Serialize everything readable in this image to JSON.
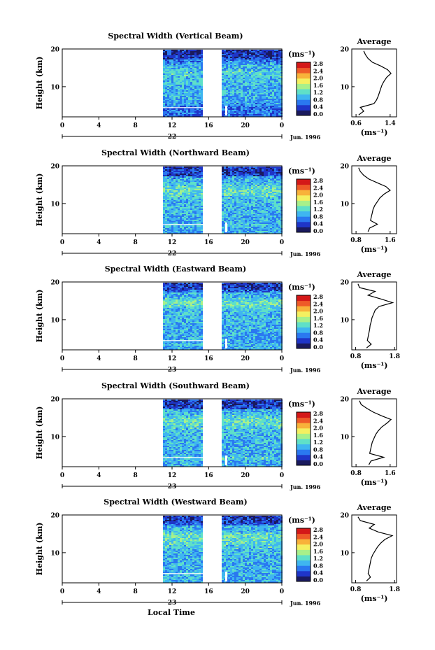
{
  "figure": {
    "xlabel": "Local Time",
    "month_label": "Jun. 1996",
    "day_labels": [
      "22",
      "22",
      "23",
      "23",
      "23"
    ]
  },
  "colorbar": {
    "label": "(ms⁻¹)",
    "ticks": [
      "2.8",
      "2.4",
      "2.0",
      "1.6",
      "1.2",
      "0.8",
      "0.4",
      "0.0"
    ],
    "colors": [
      "#1a1a5e",
      "#1f35c8",
      "#2a78f0",
      "#3fb6f0",
      "#5fe0c8",
      "#a8f08a",
      "#f4f060",
      "#f8b23a",
      "#ee5a28",
      "#d41818"
    ]
  },
  "chart_data": [
    {
      "type": "heatmap",
      "title": "Spectral Width (Vertical Beam)",
      "ylabel": "Height (km)",
      "xticks": [
        "0",
        "4",
        "8",
        "12",
        "16",
        "20",
        "0"
      ],
      "yticks": [
        "20",
        "10"
      ],
      "ylim": [
        2,
        20
      ],
      "data_gap_hours": [
        16.8,
        17.9
      ],
      "data_start_hour": 11.3,
      "profile": {
        "title": "Average",
        "xticks": [
          "0.6",
          "1.4"
        ],
        "yticks": [
          "20",
          "10"
        ],
        "xlabel": "(ms⁻¹)",
        "xlim": [
          0.5,
          1.55
        ],
        "height_km": [
          2.5,
          3.5,
          4.5,
          5.5,
          6.5,
          7.5,
          8.5,
          9.5,
          10.5,
          11.5,
          12.5,
          13.5,
          14.5,
          15.5,
          16.5,
          17.5,
          18.5,
          19.5
        ],
        "width_ms": [
          0.66,
          0.78,
          0.7,
          1.02,
          1.08,
          1.12,
          1.15,
          1.18,
          1.21,
          1.26,
          1.32,
          1.42,
          1.34,
          1.18,
          0.98,
          0.88,
          0.82,
          0.78
        ]
      }
    },
    {
      "type": "heatmap",
      "title": "Spectral Width (Northward Beam)",
      "ylabel": "Height (km)",
      "xticks": [
        "0",
        "4",
        "8",
        "12",
        "16",
        "20",
        "0"
      ],
      "yticks": [
        "20",
        "10"
      ],
      "ylim": [
        2,
        20
      ],
      "data_gap_hours": [
        16.8,
        17.9
      ],
      "data_start_hour": 11.3,
      "profile": {
        "title": "Average",
        "xticks": [
          "0.8",
          "1.6"
        ],
        "yticks": [
          "20",
          "10"
        ],
        "xlabel": "(ms⁻¹)",
        "xlim": [
          0.7,
          1.75
        ],
        "height_km": [
          2.5,
          3.5,
          4.5,
          5.5,
          6.5,
          7.5,
          8.5,
          9.5,
          10.5,
          11.5,
          12.5,
          13.5,
          14.5,
          15.5,
          16.5,
          17.5,
          18.5,
          19.5
        ],
        "width_ms": [
          1.08,
          1.12,
          1.3,
          1.14,
          1.16,
          1.18,
          1.2,
          1.24,
          1.3,
          1.36,
          1.46,
          1.6,
          1.5,
          1.3,
          1.1,
          0.98,
          0.9,
          0.86
        ]
      }
    },
    {
      "type": "heatmap",
      "title": "Spectral Width (Eastward Beam)",
      "ylabel": "Height (km)",
      "xticks": [
        "0",
        "4",
        "8",
        "12",
        "16",
        "20",
        "0"
      ],
      "yticks": [
        "20",
        "10"
      ],
      "ylim": [
        2,
        20
      ],
      "data_gap_hours": [
        16.8,
        17.9
      ],
      "data_start_hour": 11.3,
      "profile": {
        "title": "Average",
        "xticks": [
          "0.8",
          "1.8"
        ],
        "yticks": [
          "20",
          "10"
        ],
        "xlabel": "(ms⁻¹)",
        "xlim": [
          0.7,
          1.85
        ],
        "height_km": [
          2.5,
          3.5,
          4.5,
          5.5,
          6.5,
          7.5,
          8.5,
          9.5,
          10.5,
          11.5,
          12.5,
          13.5,
          14.5,
          15.5,
          16.5,
          17.5,
          18.5,
          19.5
        ],
        "width_ms": [
          1.08,
          1.2,
          1.1,
          1.12,
          1.14,
          1.16,
          1.17,
          1.2,
          1.22,
          1.26,
          1.3,
          1.4,
          1.75,
          1.45,
          1.12,
          1.3,
          0.9,
          0.86
        ]
      }
    },
    {
      "type": "heatmap",
      "title": "Spectral Width (Southward Beam)",
      "ylabel": "Height (km)",
      "xticks": [
        "0",
        "4",
        "8",
        "12",
        "16",
        "20",
        "0"
      ],
      "yticks": [
        "20",
        "10"
      ],
      "ylim": [
        2,
        20
      ],
      "data_gap_hours": [
        16.8,
        17.9
      ],
      "data_start_hour": 11.3,
      "profile": {
        "title": "Average",
        "xticks": [
          "0.8",
          "1.6"
        ],
        "yticks": [
          "20",
          "10"
        ],
        "xlabel": "(ms⁻¹)",
        "xlim": [
          0.7,
          1.75
        ],
        "height_km": [
          2.5,
          3.5,
          4.5,
          5.5,
          6.5,
          7.5,
          8.5,
          9.5,
          10.5,
          11.5,
          12.5,
          13.5,
          14.5,
          15.5,
          16.5,
          17.5,
          18.5,
          19.5
        ],
        "width_ms": [
          1.1,
          1.15,
          1.45,
          1.12,
          1.14,
          1.16,
          1.18,
          1.22,
          1.26,
          1.32,
          1.4,
          1.52,
          1.62,
          1.4,
          1.2,
          1.05,
          0.92,
          0.88
        ]
      }
    },
    {
      "type": "heatmap",
      "title": "Spectral Width (Westward Beam)",
      "ylabel": "Height (km)",
      "xticks": [
        "0",
        "4",
        "8",
        "12",
        "16",
        "20",
        "0"
      ],
      "yticks": [
        "20",
        "10"
      ],
      "ylim": [
        2,
        20
      ],
      "data_gap_hours": [
        16.8,
        17.9
      ],
      "data_start_hour": 11.3,
      "profile": {
        "title": "Average",
        "xticks": [
          "0.8",
          "1.8"
        ],
        "yticks": [
          "20",
          "10"
        ],
        "xlabel": "(ms⁻¹)",
        "xlim": [
          0.7,
          1.85
        ],
        "height_km": [
          2.5,
          3.5,
          4.5,
          5.5,
          6.5,
          7.5,
          8.5,
          9.5,
          10.5,
          11.5,
          12.5,
          13.5,
          14.5,
          15.5,
          16.5,
          17.5,
          18.5,
          19.5
        ],
        "width_ms": [
          1.08,
          1.18,
          1.12,
          1.14,
          1.16,
          1.18,
          1.2,
          1.24,
          1.3,
          1.36,
          1.44,
          1.55,
          1.74,
          1.38,
          1.15,
          1.28,
          0.92,
          0.86
        ]
      }
    }
  ]
}
